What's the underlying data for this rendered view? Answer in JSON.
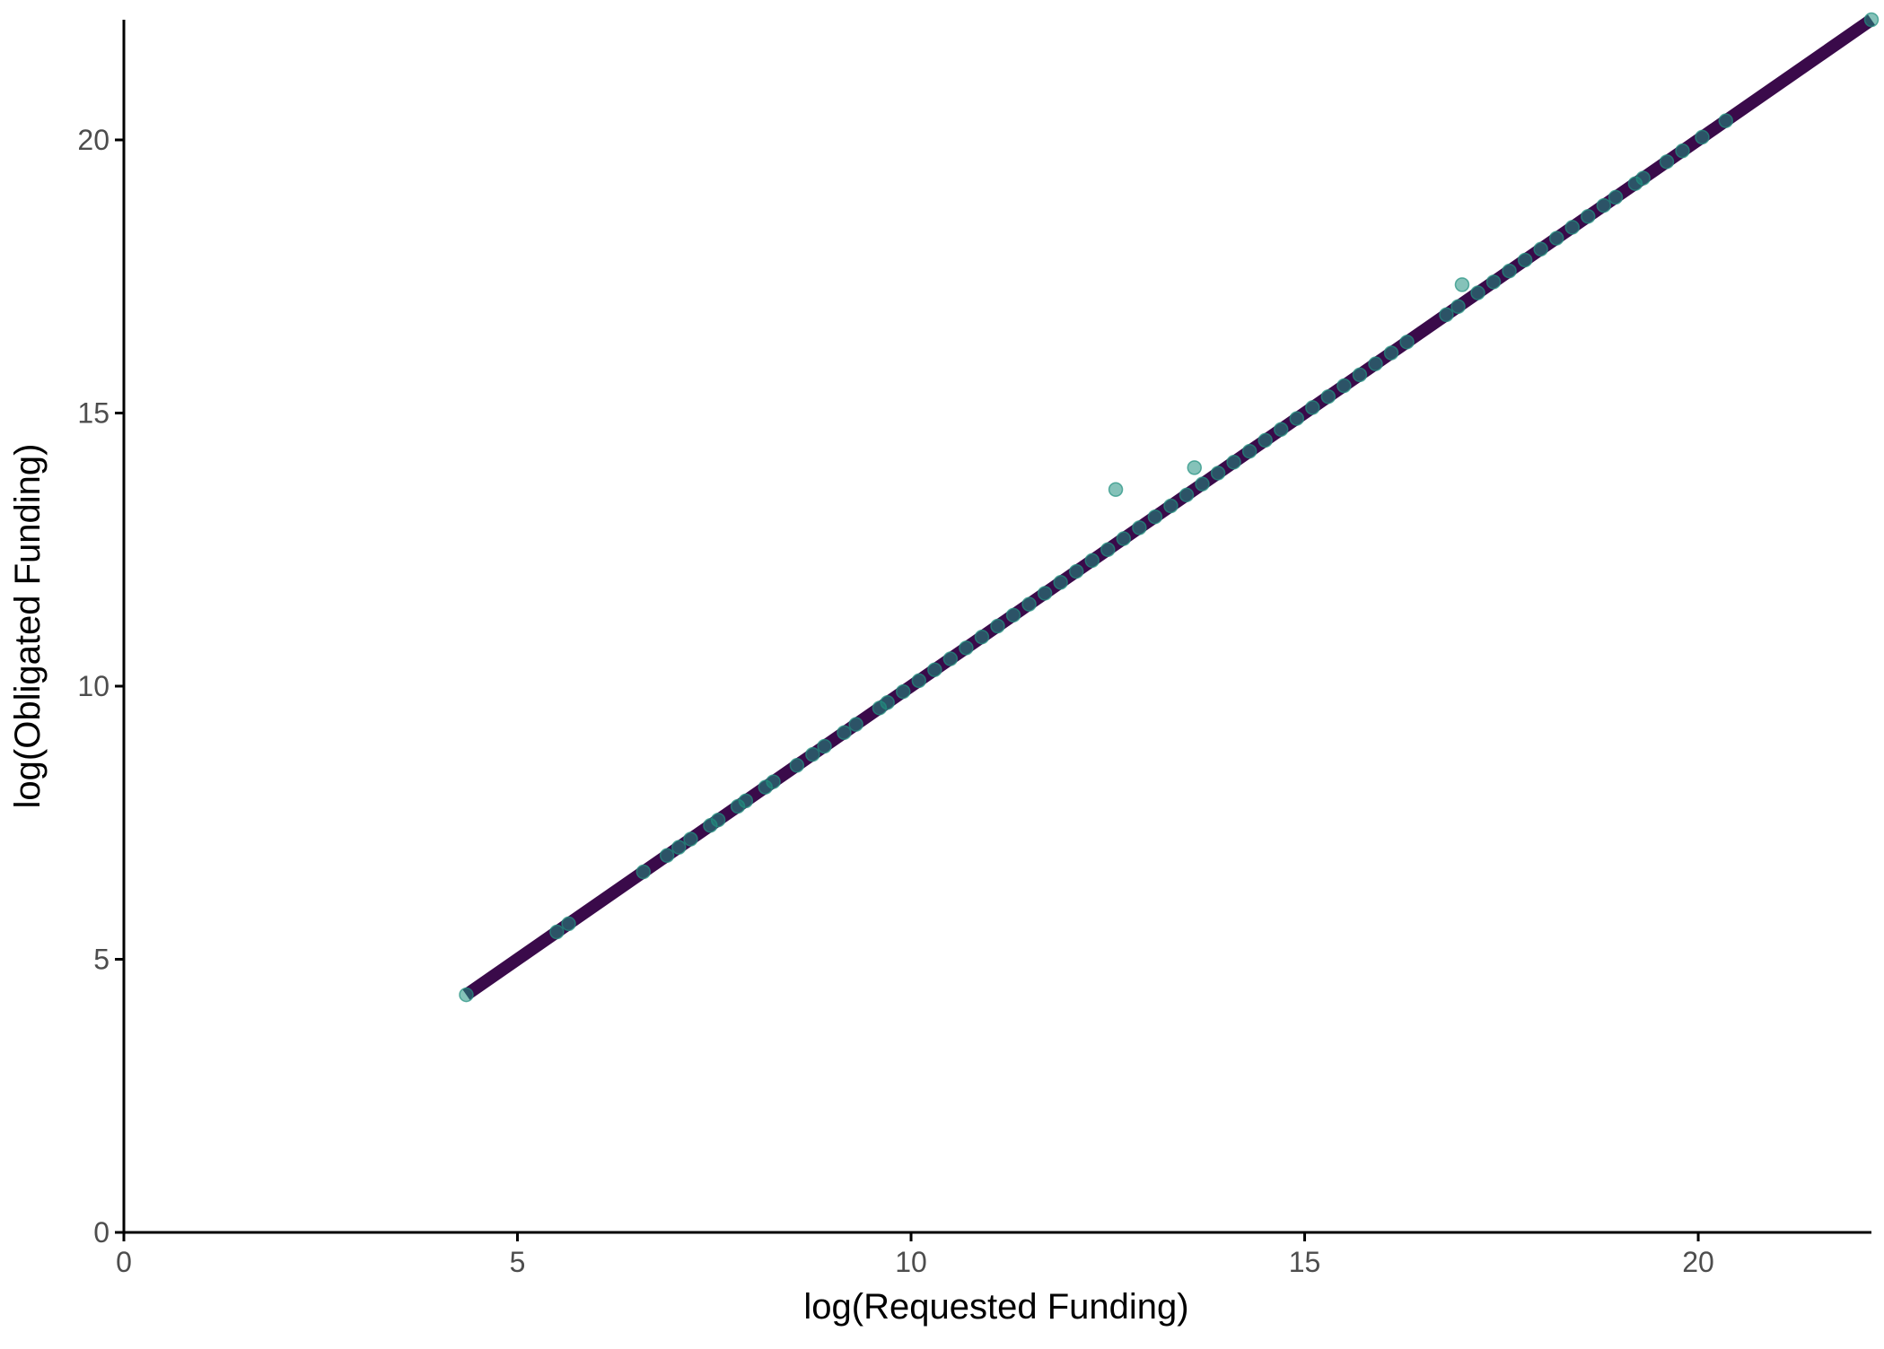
{
  "chart_data": {
    "type": "scatter",
    "title": "",
    "xlabel": "log(Requested Funding)",
    "ylabel": "log(Obligated Funding)",
    "xlim": [
      0,
      22.2
    ],
    "ylim": [
      0,
      22.2
    ],
    "x_ticks": [
      0,
      5,
      10,
      15,
      20
    ],
    "y_ticks": [
      0,
      5,
      10,
      15,
      20
    ],
    "grid": false,
    "legend": "none",
    "colors": {
      "line": "#3a0a4a",
      "points": "#21907f",
      "axis": "#000000",
      "tick_text": "#4d4d4d"
    },
    "reference_line": {
      "description": "y = x",
      "x": [
        4.35,
        22.2
      ],
      "y": [
        4.35,
        22.2
      ]
    },
    "points": [
      {
        "x": 4.35,
        "y": 4.35
      },
      {
        "x": 5.5,
        "y": 5.5
      },
      {
        "x": 5.65,
        "y": 5.65
      },
      {
        "x": 6.6,
        "y": 6.6
      },
      {
        "x": 6.9,
        "y": 6.9
      },
      {
        "x": 7.05,
        "y": 7.05
      },
      {
        "x": 7.2,
        "y": 7.2
      },
      {
        "x": 7.45,
        "y": 7.45
      },
      {
        "x": 7.55,
        "y": 7.55
      },
      {
        "x": 7.8,
        "y": 7.8
      },
      {
        "x": 7.9,
        "y": 7.9
      },
      {
        "x": 8.15,
        "y": 8.15
      },
      {
        "x": 8.25,
        "y": 8.25
      },
      {
        "x": 8.55,
        "y": 8.55
      },
      {
        "x": 8.75,
        "y": 8.75
      },
      {
        "x": 8.9,
        "y": 8.9
      },
      {
        "x": 9.15,
        "y": 9.15
      },
      {
        "x": 9.3,
        "y": 9.3
      },
      {
        "x": 9.6,
        "y": 9.6
      },
      {
        "x": 9.7,
        "y": 9.7
      },
      {
        "x": 9.9,
        "y": 9.9
      },
      {
        "x": 10.1,
        "y": 10.1
      },
      {
        "x": 10.3,
        "y": 10.3
      },
      {
        "x": 10.5,
        "y": 10.5
      },
      {
        "x": 10.7,
        "y": 10.7
      },
      {
        "x": 10.9,
        "y": 10.9
      },
      {
        "x": 11.1,
        "y": 11.1
      },
      {
        "x": 11.3,
        "y": 11.3
      },
      {
        "x": 11.5,
        "y": 11.5
      },
      {
        "x": 11.7,
        "y": 11.7
      },
      {
        "x": 11.9,
        "y": 11.9
      },
      {
        "x": 12.1,
        "y": 12.1
      },
      {
        "x": 12.3,
        "y": 12.3
      },
      {
        "x": 12.5,
        "y": 12.5
      },
      {
        "x": 12.6,
        "y": 13.6
      },
      {
        "x": 12.7,
        "y": 12.7
      },
      {
        "x": 12.9,
        "y": 12.9
      },
      {
        "x": 13.1,
        "y": 13.1
      },
      {
        "x": 13.3,
        "y": 13.3
      },
      {
        "x": 13.5,
        "y": 13.5
      },
      {
        "x": 13.6,
        "y": 14.0
      },
      {
        "x": 13.7,
        "y": 13.7
      },
      {
        "x": 13.9,
        "y": 13.9
      },
      {
        "x": 14.1,
        "y": 14.1
      },
      {
        "x": 14.3,
        "y": 14.3
      },
      {
        "x": 14.5,
        "y": 14.5
      },
      {
        "x": 14.7,
        "y": 14.7
      },
      {
        "x": 14.9,
        "y": 14.9
      },
      {
        "x": 15.1,
        "y": 15.1
      },
      {
        "x": 15.3,
        "y": 15.3
      },
      {
        "x": 15.5,
        "y": 15.5
      },
      {
        "x": 15.7,
        "y": 15.7
      },
      {
        "x": 15.9,
        "y": 15.9
      },
      {
        "x": 16.1,
        "y": 16.1
      },
      {
        "x": 16.3,
        "y": 16.3
      },
      {
        "x": 16.8,
        "y": 16.8
      },
      {
        "x": 16.95,
        "y": 16.95
      },
      {
        "x": 17.0,
        "y": 17.35
      },
      {
        "x": 17.2,
        "y": 17.2
      },
      {
        "x": 17.4,
        "y": 17.4
      },
      {
        "x": 17.6,
        "y": 17.6
      },
      {
        "x": 17.8,
        "y": 17.8
      },
      {
        "x": 18.0,
        "y": 18.0
      },
      {
        "x": 18.2,
        "y": 18.2
      },
      {
        "x": 18.4,
        "y": 18.4
      },
      {
        "x": 18.6,
        "y": 18.6
      },
      {
        "x": 18.8,
        "y": 18.8
      },
      {
        "x": 18.95,
        "y": 18.95
      },
      {
        "x": 19.2,
        "y": 19.2
      },
      {
        "x": 19.3,
        "y": 19.3
      },
      {
        "x": 19.6,
        "y": 19.6
      },
      {
        "x": 19.8,
        "y": 19.8
      },
      {
        "x": 20.05,
        "y": 20.05
      },
      {
        "x": 20.35,
        "y": 20.35
      },
      {
        "x": 22.2,
        "y": 22.2
      }
    ]
  }
}
